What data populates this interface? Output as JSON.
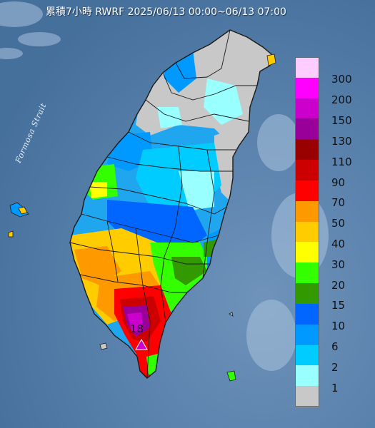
{
  "title": "累積7小時 RWRF 2025/06/13 00:00~06/13 07:00",
  "strait_label": "Formosa Strait",
  "max_value_label": "18",
  "legend": {
    "items": [
      {
        "label": "300",
        "color": "#ffccff"
      },
      {
        "label": "200",
        "color": "#ff00ff"
      },
      {
        "label": "150",
        "color": "#cc00cc"
      },
      {
        "label": "130",
        "color": "#990099"
      },
      {
        "label": "110",
        "color": "#990000"
      },
      {
        "label": "90",
        "color": "#cc0000"
      },
      {
        "label": "70",
        "color": "#ff0000"
      },
      {
        "label": "50",
        "color": "#ff9900"
      },
      {
        "label": "40",
        "color": "#ffcc00"
      },
      {
        "label": "30",
        "color": "#ffff00"
      },
      {
        "label": "20",
        "color": "#33ff00"
      },
      {
        "label": "15",
        "color": "#339900"
      },
      {
        "label": "10",
        "color": "#0066ff"
      },
      {
        "label": "6",
        "color": "#0099ff"
      },
      {
        "label": "2",
        "color": "#00ccff"
      },
      {
        "label": "1",
        "color": "#99ffff"
      },
      {
        "label": "",
        "color": "#c8c8c8"
      }
    ]
  },
  "colors": {
    "sea": "#4f79a6",
    "boundary": "#1a1a1a"
  }
}
